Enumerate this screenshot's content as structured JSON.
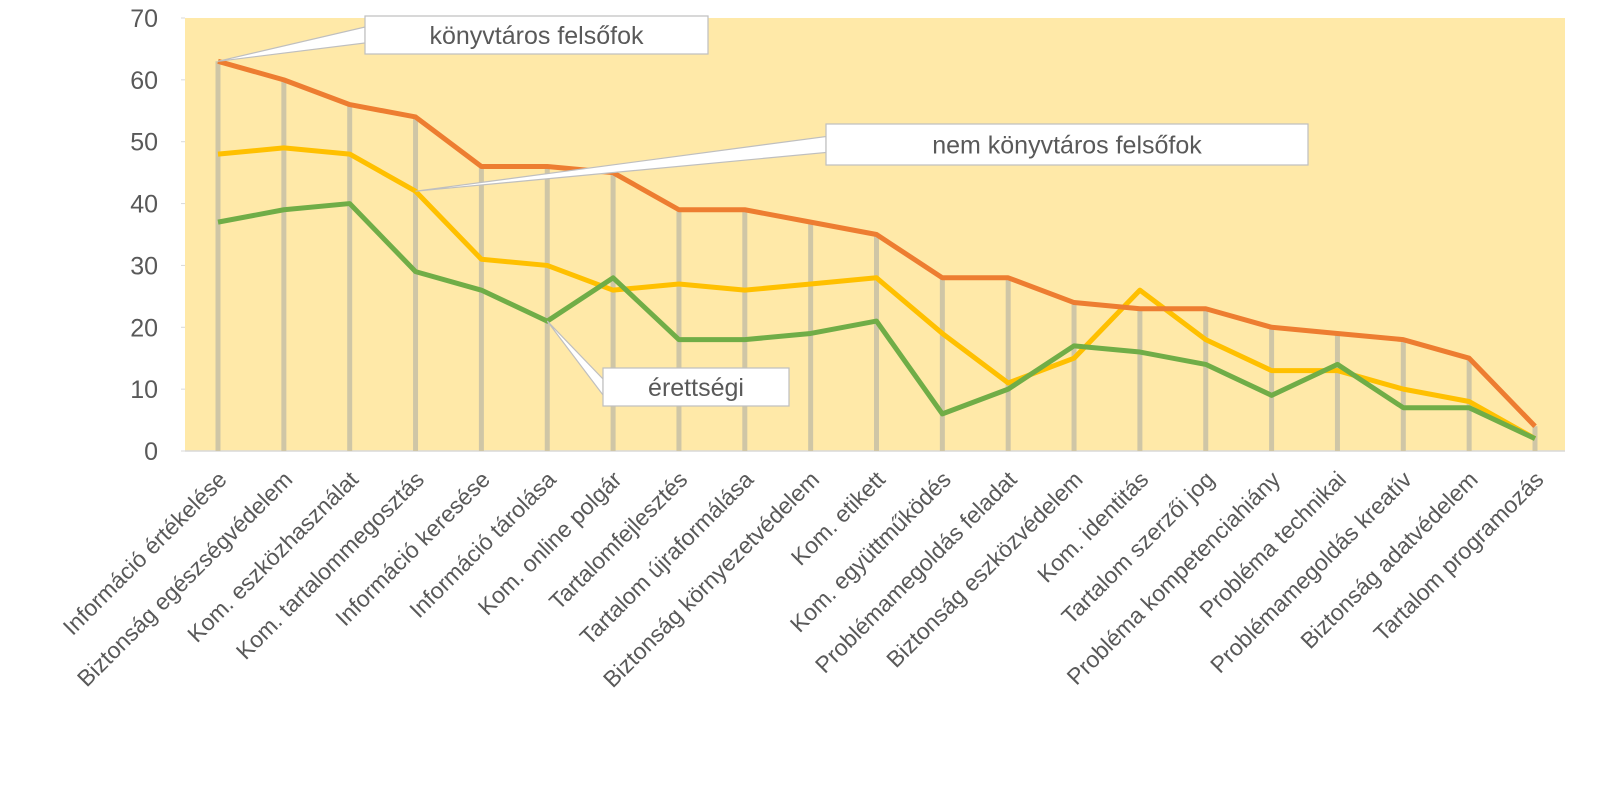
{
  "chart_data": {
    "type": "line",
    "categories": [
      "Információ értékelése",
      "Biztonság egészségvédelem",
      "Kom. eszközhasználat",
      "Kom. tartalommegosztás",
      "Információ keresése",
      "Információ tárolása",
      "Kom. online polgár",
      "Tartalomfejlesztés",
      "Tartalom újraformálása",
      "Biztonság környezetvédelem",
      "Kom. etikett",
      "Kom. együttműködés",
      "Problémamegoldás feladat",
      "Biztonság eszközvédelem",
      "Kom. identitás",
      "Tartalom szerzői jog",
      "Probléma kompetenciahiány",
      "Probléma technikai",
      "Problémamegoldás kreatív",
      "Biztonság adatvédelem",
      "Tartalom programozás"
    ],
    "series": [
      {
        "name": "könyvtáros felsőfok",
        "color": "#ED7D31",
        "values": [
          63,
          60,
          56,
          54,
          46,
          46,
          45,
          39,
          39,
          37,
          35,
          28,
          28,
          24,
          23,
          23,
          20,
          19,
          18,
          15,
          4
        ]
      },
      {
        "name": "nem könyvtáros felsőfok",
        "color": "#FFC000",
        "values": [
          48,
          49,
          48,
          42,
          31,
          30,
          26,
          27,
          26,
          27,
          28,
          19,
          11,
          15,
          26,
          18,
          13,
          13,
          10,
          8,
          2
        ]
      },
      {
        "name": "érettségi",
        "color": "#70AD47",
        "values": [
          37,
          39,
          40,
          29,
          26,
          21,
          28,
          18,
          18,
          19,
          21,
          6,
          10,
          17,
          16,
          14,
          9,
          14,
          7,
          7,
          2
        ]
      }
    ],
    "ylim": [
      0,
      70
    ],
    "yticks": [
      0,
      10,
      20,
      30,
      40,
      50,
      60,
      70
    ],
    "background": "#FFE9A8",
    "drop_line_color": "#CFC6A6"
  }
}
